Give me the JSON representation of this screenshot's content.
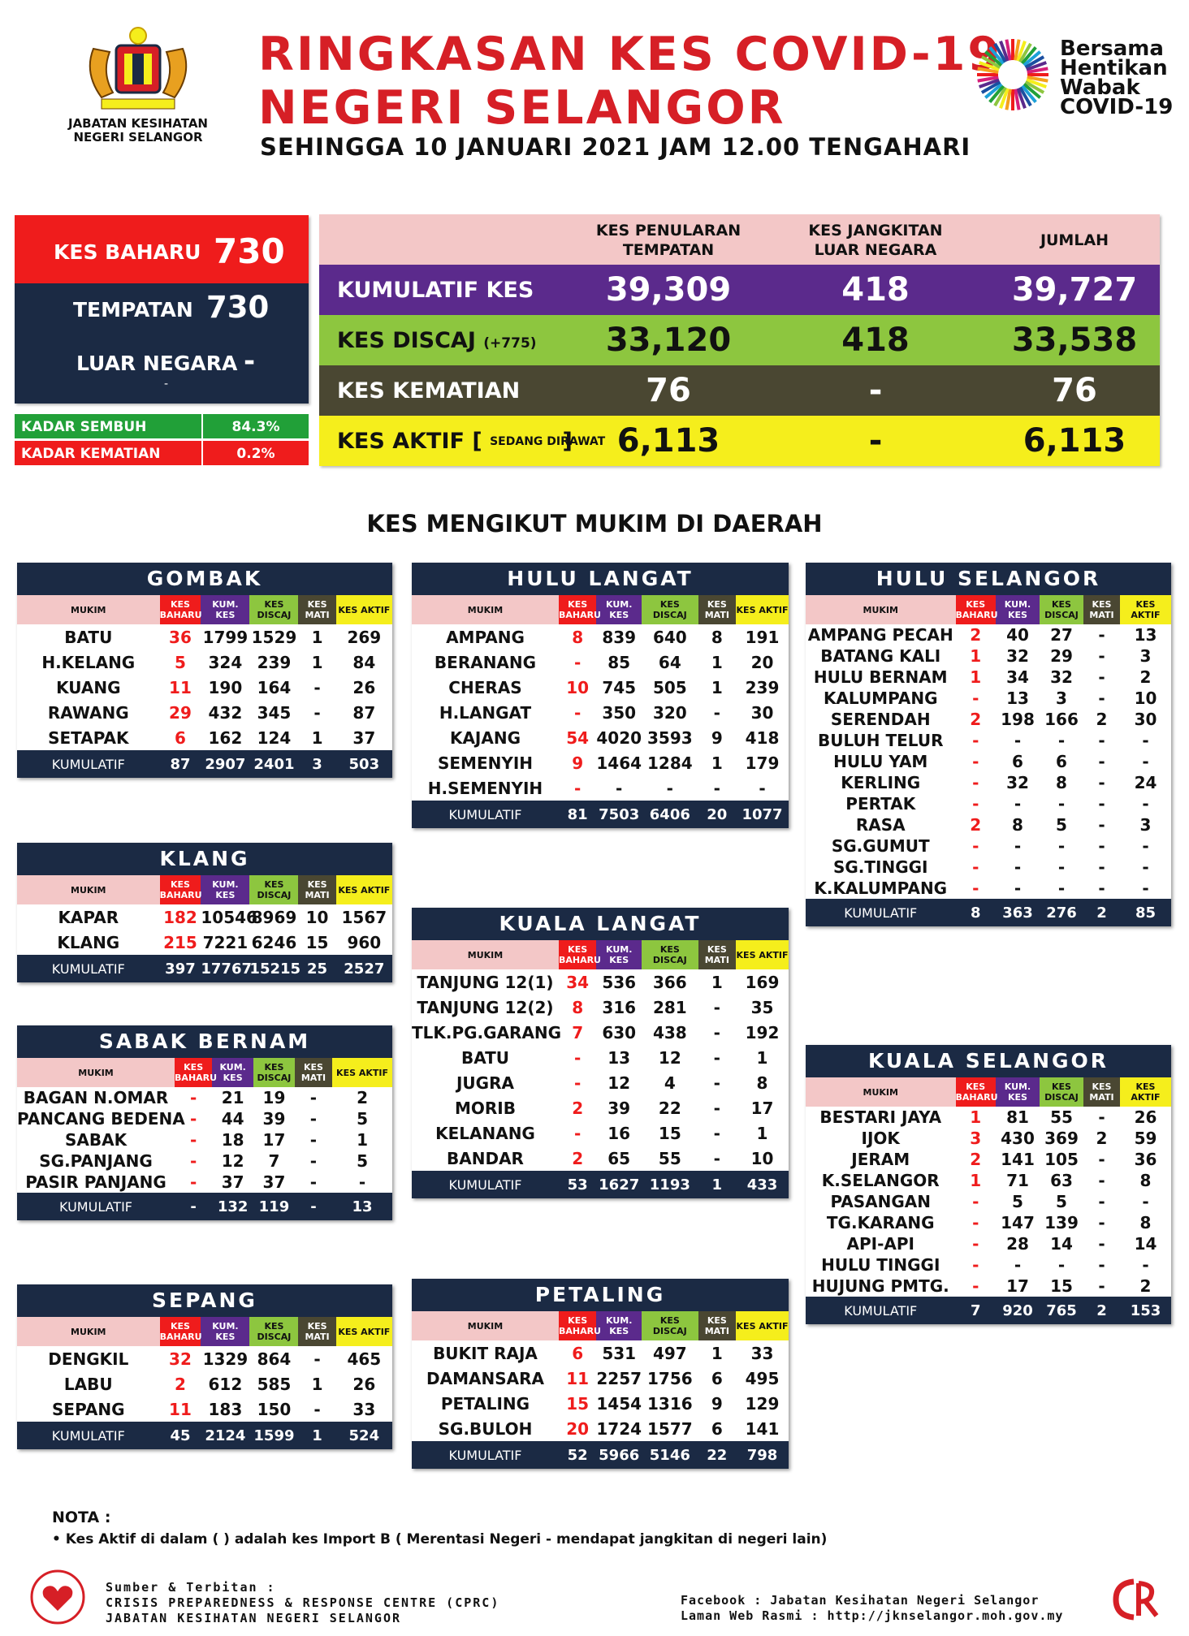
{
  "header": {
    "agency": "JABATAN KESIHATAN NEGERI SELANGOR",
    "title_line1": "RINGKASAN KES COVID-19",
    "title_line2": "NEGERI SELANGOR",
    "subtitle": "SEHINGGA 10 JANUARI 2021 JAM 12.00 TENGAHARI",
    "campaign": [
      "Bersama",
      "Hentikan",
      "Wabak",
      "COVID-19"
    ]
  },
  "new_cases": {
    "label": "KES BAHARU",
    "value": "730",
    "tempatan_label": "TEMPATAN",
    "tempatan_value": "730",
    "luar_label": "LUAR NEGARA",
    "luar_value": "-",
    "luar_sub": "-"
  },
  "rates": {
    "sembuh_label": "KADAR SEMBUH",
    "sembuh_value": "84.3%",
    "kematian_label": "KADAR KEMATIAN",
    "kematian_value": "0.2%"
  },
  "summary": {
    "col1": "KES PENULARAN TEMPATAN",
    "col2": "KES JANGKITAN LUAR NEGARA",
    "col3": "JUMLAH",
    "rows": [
      {
        "label": "KUMULATIF KES",
        "extra": "",
        "v1": "39,309",
        "v2": "418",
        "v3": "39,727"
      },
      {
        "label": "KES DISCAJ",
        "extra": "(+775)",
        "v1": "33,120",
        "v2": "418",
        "v3": "33,538"
      },
      {
        "label": "KES KEMATIAN",
        "extra": "",
        "v1": "76",
        "v2": "-",
        "v3": "76"
      },
      {
        "label": "KES AKTIF [",
        "extra": "SEDANG DIRAWAT",
        "v1": "6,113",
        "v2": "-",
        "v3": "6,113"
      }
    ]
  },
  "section_title": "KES MENGIKUT MUKIM DI DAERAH",
  "table_headers": [
    "MUKIM",
    "KES BAHARU",
    "KUM. KES",
    "KES DISCAJ",
    "KES MATI",
    "KES AKTIF"
  ],
  "districts": [
    {
      "name": "GOMBAK",
      "rows": [
        [
          "BATU",
          "36",
          "1799",
          "1529",
          "1",
          "269"
        ],
        [
          "H.KELANG",
          "5",
          "324",
          "239",
          "1",
          "84"
        ],
        [
          "KUANG",
          "11",
          "190",
          "164",
          "-",
          "26"
        ],
        [
          "RAWANG",
          "29",
          "432",
          "345",
          "-",
          "87"
        ],
        [
          "SETAPAK",
          "6",
          "162",
          "124",
          "1",
          "37"
        ]
      ],
      "total": [
        "KUMULATIF",
        "87",
        "2907",
        "2401",
        "3",
        "503"
      ]
    },
    {
      "name": "KLANG",
      "rows": [
        [
          "KAPAR",
          "182",
          "10546",
          "8969",
          "10",
          "1567"
        ],
        [
          "KLANG",
          "215",
          "7221",
          "6246",
          "15",
          "960"
        ]
      ],
      "total": [
        "KUMULATIF",
        "397",
        "17767",
        "15215",
        "25",
        "2527"
      ]
    },
    {
      "name": "SABAK BERNAM",
      "rows": [
        [
          "BAGAN N.OMAR",
          "-",
          "21",
          "19",
          "-",
          "2"
        ],
        [
          "PANCANG BEDENA",
          "-",
          "44",
          "39",
          "-",
          "5"
        ],
        [
          "SABAK",
          "-",
          "18",
          "17",
          "-",
          "1"
        ],
        [
          "SG.PANJANG",
          "-",
          "12",
          "7",
          "-",
          "5"
        ],
        [
          "PASIR PANJANG",
          "-",
          "37",
          "37",
          "-",
          "-"
        ]
      ],
      "total": [
        "KUMULATIF",
        "-",
        "132",
        "119",
        "-",
        "13"
      ]
    },
    {
      "name": "SEPANG",
      "rows": [
        [
          "DENGKIL",
          "32",
          "1329",
          "864",
          "-",
          "465"
        ],
        [
          "LABU",
          "2",
          "612",
          "585",
          "1",
          "26"
        ],
        [
          "SEPANG",
          "11",
          "183",
          "150",
          "-",
          "33"
        ]
      ],
      "total": [
        "KUMULATIF",
        "45",
        "2124",
        "1599",
        "1",
        "524"
      ]
    },
    {
      "name": "HULU LANGAT",
      "rows": [
        [
          "AMPANG",
          "8",
          "839",
          "640",
          "8",
          "191"
        ],
        [
          "BERANANG",
          "-",
          "85",
          "64",
          "1",
          "20"
        ],
        [
          "CHERAS",
          "10",
          "745",
          "505",
          "1",
          "239"
        ],
        [
          "H.LANGAT",
          "-",
          "350",
          "320",
          "-",
          "30"
        ],
        [
          "KAJANG",
          "54",
          "4020",
          "3593",
          "9",
          "418"
        ],
        [
          "SEMENYIH",
          "9",
          "1464",
          "1284",
          "1",
          "179"
        ],
        [
          "H.SEMENYIH",
          "-",
          "-",
          "-",
          "-",
          "-"
        ]
      ],
      "total": [
        "KUMULATIF",
        "81",
        "7503",
        "6406",
        "20",
        "1077"
      ]
    },
    {
      "name": "KUALA LANGAT",
      "rows": [
        [
          "TANJUNG 12(1)",
          "34",
          "536",
          "366",
          "1",
          "169"
        ],
        [
          "TANJUNG 12(2)",
          "8",
          "316",
          "281",
          "-",
          "35"
        ],
        [
          "TLK.PG.GARANG",
          "7",
          "630",
          "438",
          "-",
          "192"
        ],
        [
          "BATU",
          "-",
          "13",
          "12",
          "-",
          "1"
        ],
        [
          "JUGRA",
          "-",
          "12",
          "4",
          "-",
          "8"
        ],
        [
          "MORIB",
          "2",
          "39",
          "22",
          "-",
          "17"
        ],
        [
          "KELANANG",
          "-",
          "16",
          "15",
          "-",
          "1"
        ],
        [
          "BANDAR",
          "2",
          "65",
          "55",
          "-",
          "10"
        ]
      ],
      "total": [
        "KUMULATIF",
        "53",
        "1627",
        "1193",
        "1",
        "433"
      ]
    },
    {
      "name": "PETALING",
      "rows": [
        [
          "BUKIT RAJA",
          "6",
          "531",
          "497",
          "1",
          "33"
        ],
        [
          "DAMANSARA",
          "11",
          "2257",
          "1756",
          "6",
          "495"
        ],
        [
          "PETALING",
          "15",
          "1454",
          "1316",
          "9",
          "129"
        ],
        [
          "SG.BULOH",
          "20",
          "1724",
          "1577",
          "6",
          "141"
        ]
      ],
      "total": [
        "KUMULATIF",
        "52",
        "5966",
        "5146",
        "22",
        "798"
      ]
    },
    {
      "name": "HULU SELANGOR",
      "rows": [
        [
          "AMPANG PECAH",
          "2",
          "40",
          "27",
          "-",
          "13"
        ],
        [
          "BATANG KALI",
          "1",
          "32",
          "29",
          "-",
          "3"
        ],
        [
          "HULU BERNAM",
          "1",
          "34",
          "32",
          "-",
          "2"
        ],
        [
          "KALUMPANG",
          "-",
          "13",
          "3",
          "-",
          "10"
        ],
        [
          "SERENDAH",
          "2",
          "198",
          "166",
          "2",
          "30"
        ],
        [
          "BULUH TELUR",
          "-",
          "-",
          "-",
          "-",
          "-"
        ],
        [
          "HULU YAM",
          "-",
          "6",
          "6",
          "-",
          "-"
        ],
        [
          "KERLING",
          "-",
          "32",
          "8",
          "-",
          "24"
        ],
        [
          "PERTAK",
          "-",
          "-",
          "-",
          "-",
          "-"
        ],
        [
          "RASA",
          "2",
          "8",
          "5",
          "-",
          "3"
        ],
        [
          "SG.GUMUT",
          "-",
          "-",
          "-",
          "-",
          "-"
        ],
        [
          "SG.TINGGI",
          "-",
          "-",
          "-",
          "-",
          "-"
        ],
        [
          "K.KALUMPANG",
          "-",
          "-",
          "-",
          "-",
          "-"
        ]
      ],
      "total": [
        "KUMULATIF",
        "8",
        "363",
        "276",
        "2",
        "85"
      ]
    },
    {
      "name": "KUALA SELANGOR",
      "rows": [
        [
          "BESTARI JAYA",
          "1",
          "81",
          "55",
          "-",
          "26"
        ],
        [
          "IJOK",
          "3",
          "430",
          "369",
          "2",
          "59"
        ],
        [
          "JERAM",
          "2",
          "141",
          "105",
          "-",
          "36"
        ],
        [
          "K.SELANGOR",
          "1",
          "71",
          "63",
          "-",
          "8"
        ],
        [
          "PASANGAN",
          "-",
          "5",
          "5",
          "-",
          "-"
        ],
        [
          "TG.KARANG",
          "-",
          "147",
          "139",
          "-",
          "8"
        ],
        [
          "API-API",
          "-",
          "28",
          "14",
          "-",
          "14"
        ],
        [
          "HULU TINGGI",
          "-",
          "-",
          "-",
          "-",
          "-"
        ],
        [
          "HUJUNG PMTG.",
          "-",
          "17",
          "15",
          "-",
          "2"
        ]
      ],
      "total": [
        "KUMULATIF",
        "7",
        "920",
        "765",
        "2",
        "153"
      ]
    }
  ],
  "footer": {
    "nota_title": "NOTA :",
    "nota_line": "• Kes Aktif di dalam (     ) adalah kes Import B ( Merentasi Negeri - mendapat jangkitan di negeri lain)",
    "source_lines": [
      "Sumber & Terbitan :",
      "CRISIS PREPAREDNESS & RESPONSE CENTRE (CPRC)",
      "JABATAN KESIHATAN NEGERI SELANGOR"
    ],
    "social_lines": [
      "Facebook : Jabatan Kesihatan Negeri Selangor",
      "Laman Web Rasmi : http://jknselangor.moh.gov.my"
    ]
  },
  "colors": {
    "red": "#ef1c1c",
    "navy": "#1b2a44",
    "purple": "#5b2a8c",
    "green": "#8dc63f",
    "olive": "#4a4732",
    "yellow": "#f5ee1c",
    "pink": "#f3c7c7",
    "title_red": "#d61f26"
  }
}
